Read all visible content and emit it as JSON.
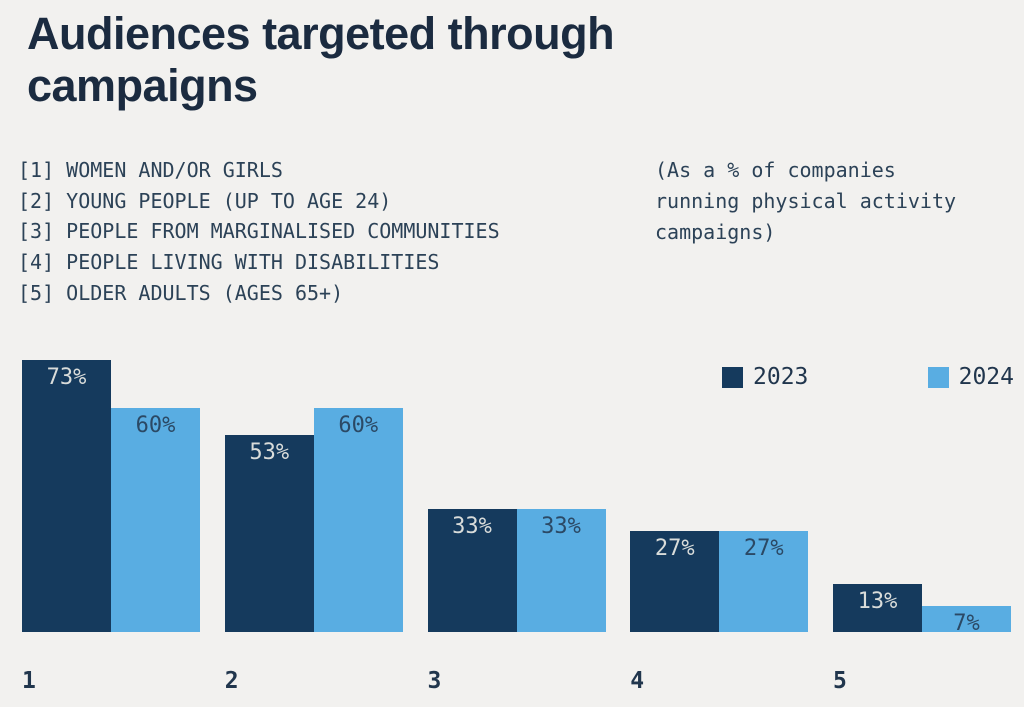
{
  "page": {
    "background": "#f2f1ef"
  },
  "header": {
    "title": "Audiences targeted through campaigns"
  },
  "audience_list": {
    "items": [
      "[1] WOMEN AND/OR GIRLS",
      "[2] YOUNG PEOPLE (UP TO AGE 24)",
      "[3] PEOPLE FROM MARGINALISED COMMUNITIES",
      "[4] PEOPLE LIVING WITH DISABILITIES",
      "[5] OLDER ADULTS (AGES 65+)"
    ]
  },
  "note": {
    "lines": [
      "(As a % of companies",
      "running physical activity",
      "campaigns)"
    ]
  },
  "legend": {
    "items": [
      {
        "label": "2023",
        "color": "#153a5d"
      },
      {
        "label": "2024",
        "color": "#59ade2"
      }
    ]
  },
  "chart_data": {
    "type": "bar",
    "title": "Audiences targeted through campaigns",
    "subtitle": "(As a % of companies running physical activity campaigns)",
    "categories": [
      "1",
      "2",
      "3",
      "4",
      "5"
    ],
    "category_descriptions": [
      "WOMEN AND/OR GIRLS",
      "YOUNG PEOPLE (UP TO AGE 24)",
      "PEOPLE FROM MARGINALISED COMMUNITIES",
      "PEOPLE LIVING WITH DISABILITIES",
      "OLDER ADULTS (AGES 65+)"
    ],
    "series": [
      {
        "name": "2023",
        "color": "#153a5d",
        "label_color": "#d9dcda",
        "values": [
          73,
          53,
          33,
          27,
          13
        ]
      },
      {
        "name": "2024",
        "color": "#59ade2",
        "label_color": "#2b4965",
        "values": [
          60,
          60,
          33,
          27,
          7
        ]
      }
    ],
    "value_suffix": "%",
    "xlabel": "",
    "ylabel": "",
    "ylim": [
      0,
      80
    ],
    "grid": false,
    "legend_position": "top-right"
  }
}
